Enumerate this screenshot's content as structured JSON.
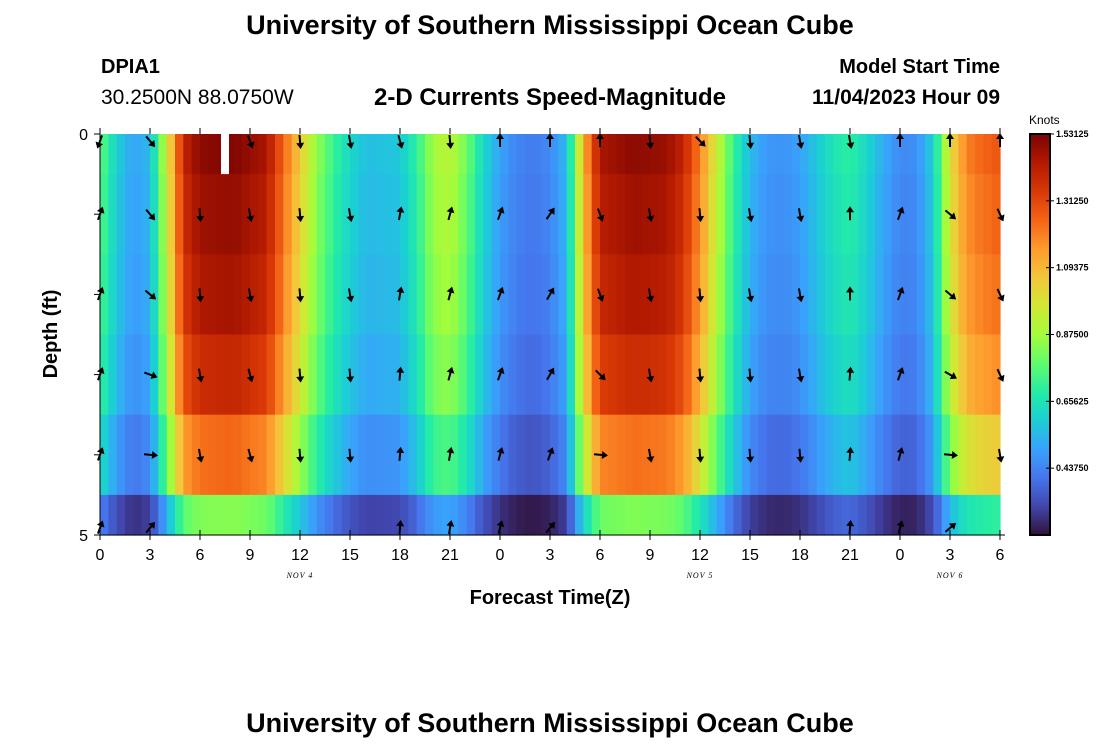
{
  "header": {
    "title": "University of Southern Mississippi Ocean Cube",
    "station_id": "DPIA1",
    "station_coords": "30.2500N  88.0750W",
    "plot_heading": "2-D Currents Speed-Magnitude",
    "model_start_label": "Model Start Time",
    "model_start_value": "11/04/2023 Hour 09"
  },
  "footer": {
    "title": "University of Southern Mississippi Ocean Cube"
  },
  "colors": {
    "colormap": [
      "#30123b",
      "#4145ab",
      "#4675ed",
      "#39a2fc",
      "#1bcfd4",
      "#24eca6",
      "#61fc6c",
      "#a4fc3b",
      "#d1e834",
      "#f3c63a",
      "#fe9b2d",
      "#f36315",
      "#d93806",
      "#b11901",
      "#7a0402"
    ],
    "arrow": "#000000",
    "axis": "#000000"
  },
  "chart_data": {
    "type": "heatmap",
    "title": "2-D Currents Speed-Magnitude",
    "xlabel": "Forecast Time(Z)",
    "ylabel": "Depth (ft)",
    "x_hours": [
      0,
      3,
      6,
      9,
      12,
      15,
      18,
      21,
      24,
      27,
      30,
      33,
      36,
      39,
      42,
      45,
      48,
      51,
      54
    ],
    "x_tick_labels": [
      "0",
      "3",
      "6",
      "9",
      "12",
      "15",
      "18",
      "21",
      "0",
      "3",
      "6",
      "9",
      "12",
      "15",
      "18",
      "21",
      "0",
      "3",
      "6"
    ],
    "xlim": [
      0,
      54
    ],
    "date_labels": [
      {
        "hour": 12,
        "text": "NOV 4"
      },
      {
        "hour": 36,
        "text": "NOV 5"
      },
      {
        "hour": 51,
        "text": "NOV 6"
      }
    ],
    "y_tick_labels": [
      "0",
      "5"
    ],
    "ylim": [
      0,
      5
    ],
    "depth_bands": [
      0,
      1,
      2,
      3,
      4,
      5
    ],
    "colorbar": {
      "label": "Knots",
      "ticks": [
        1.53125,
        1.3125,
        1.09375,
        0.875,
        0.65625,
        0.4375
      ],
      "tick_labels": [
        "1.53125",
        "1.31250",
        "1.09375",
        "0.87500",
        "0.65625",
        "0.43750"
      ],
      "min": 0.21875,
      "max": 1.53125
    },
    "speed_profile_hours": [
      0,
      1,
      2,
      3,
      4,
      5,
      6,
      8,
      10,
      11,
      12,
      13,
      14,
      15,
      16,
      18,
      19,
      20,
      21,
      22,
      23,
      24,
      25,
      26,
      27,
      28,
      29,
      30,
      32,
      34,
      35,
      36,
      37,
      38,
      39,
      40,
      41,
      42,
      43,
      44,
      45,
      46,
      47,
      48,
      49,
      50,
      51,
      52,
      53,
      54
    ],
    "surface_speed": [
      0.78,
      0.6,
      0.5,
      0.55,
      0.95,
      1.4,
      1.5,
      1.52,
      1.45,
      1.25,
      1.05,
      0.85,
      0.72,
      0.62,
      0.56,
      0.58,
      0.7,
      0.88,
      0.92,
      0.8,
      0.62,
      0.5,
      0.44,
      0.42,
      0.45,
      0.55,
      1.1,
      1.45,
      1.5,
      1.48,
      1.4,
      1.2,
      0.95,
      0.72,
      0.55,
      0.48,
      0.47,
      0.5,
      0.58,
      0.66,
      0.7,
      0.62,
      0.52,
      0.45,
      0.46,
      0.6,
      1.0,
      1.2,
      1.25,
      1.28
    ],
    "depth_factors": [
      1.0,
      0.98,
      0.96,
      0.92,
      0.82,
      0.55
    ],
    "current_arrows_deg": [
      [
        200,
        140,
        null,
        160,
        175,
        170,
        165,
        175,
        0,
        0,
        0,
        175,
        135,
        175,
        170,
        170,
        0,
        0,
        0
      ],
      [
        20,
        140,
        175,
        170,
        175,
        170,
        10,
        15,
        20,
        35,
        160,
        170,
        175,
        170,
        170,
        0,
        20,
        130,
        155
      ],
      [
        20,
        130,
        175,
        170,
        175,
        170,
        10,
        15,
        20,
        30,
        160,
        170,
        175,
        170,
        170,
        0,
        20,
        130,
        155
      ],
      [
        20,
        110,
        170,
        165,
        175,
        175,
        5,
        15,
        20,
        30,
        135,
        170,
        175,
        175,
        170,
        5,
        20,
        120,
        155
      ],
      [
        20,
        95,
        170,
        165,
        175,
        175,
        5,
        10,
        15,
        20,
        95,
        170,
        175,
        175,
        175,
        5,
        15,
        95,
        170
      ],
      [
        20,
        40,
        null,
        null,
        null,
        null,
        5,
        10,
        15,
        40,
        null,
        null,
        null,
        null,
        null,
        5,
        15,
        50,
        null
      ]
    ],
    "data_gap_hour": 7.5
  }
}
